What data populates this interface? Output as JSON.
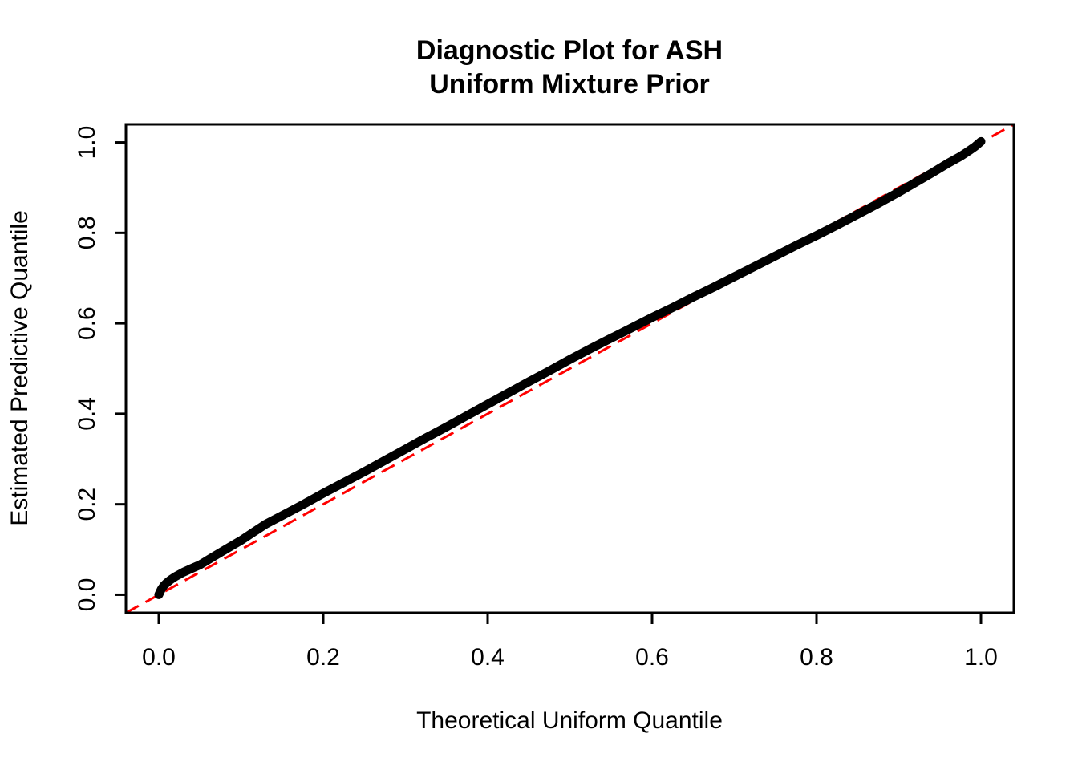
{
  "chart_data": {
    "type": "line",
    "title": "Diagnostic Plot for ASH\nUniform Mixture Prior",
    "title_lines": [
      "Diagnostic Plot for ASH",
      "Uniform Mixture Prior"
    ],
    "xlabel": "Theoretical Uniform Quantile",
    "ylabel": "Estimated Predictive Quantile",
    "xlim": [
      -0.04,
      1.04
    ],
    "ylim": [
      -0.04,
      1.04
    ],
    "grid": false,
    "legend_position": "none",
    "x_ticks": {
      "values": [
        0.0,
        0.2,
        0.4,
        0.6,
        0.8,
        1.0
      ],
      "labels": [
        "0.0",
        "0.2",
        "0.4",
        "0.6",
        "0.8",
        "1.0"
      ]
    },
    "y_ticks": {
      "values": [
        0.0,
        0.2,
        0.4,
        0.6,
        0.8,
        1.0
      ],
      "labels": [
        "0.0",
        "0.2",
        "0.4",
        "0.6",
        "0.8",
        "1.0"
      ]
    },
    "colors": {
      "curve": "#000000",
      "reference_line": "#FF0000",
      "axis": "#000000",
      "background": "#FFFFFF"
    },
    "series": [
      {
        "name": "estimated-predictive-quantile-curve",
        "style": "solid",
        "color": "#000000",
        "stroke_width": 11,
        "points": [
          [
            0.0,
            0.0
          ],
          [
            0.003,
            0.012
          ],
          [
            0.006,
            0.02
          ],
          [
            0.01,
            0.027
          ],
          [
            0.015,
            0.034
          ],
          [
            0.02,
            0.04
          ],
          [
            0.03,
            0.05
          ],
          [
            0.04,
            0.058
          ],
          [
            0.05,
            0.066
          ],
          [
            0.07,
            0.088
          ],
          [
            0.085,
            0.104
          ],
          [
            0.1,
            0.12
          ],
          [
            0.115,
            0.138
          ],
          [
            0.13,
            0.156
          ],
          [
            0.15,
            0.175
          ],
          [
            0.175,
            0.199
          ],
          [
            0.2,
            0.224
          ],
          [
            0.225,
            0.248
          ],
          [
            0.25,
            0.272
          ],
          [
            0.275,
            0.297
          ],
          [
            0.3,
            0.322
          ],
          [
            0.325,
            0.347
          ],
          [
            0.35,
            0.371
          ],
          [
            0.375,
            0.396
          ],
          [
            0.4,
            0.421
          ],
          [
            0.425,
            0.446
          ],
          [
            0.45,
            0.471
          ],
          [
            0.475,
            0.495
          ],
          [
            0.5,
            0.52
          ],
          [
            0.525,
            0.544
          ],
          [
            0.55,
            0.567
          ],
          [
            0.575,
            0.59
          ],
          [
            0.6,
            0.613
          ],
          [
            0.625,
            0.635
          ],
          [
            0.65,
            0.658
          ],
          [
            0.675,
            0.68
          ],
          [
            0.7,
            0.703
          ],
          [
            0.725,
            0.726
          ],
          [
            0.75,
            0.749
          ],
          [
            0.775,
            0.772
          ],
          [
            0.8,
            0.794
          ],
          [
            0.825,
            0.817
          ],
          [
            0.85,
            0.841
          ],
          [
            0.875,
            0.865
          ],
          [
            0.9,
            0.89
          ],
          [
            0.92,
            0.911
          ],
          [
            0.94,
            0.932
          ],
          [
            0.96,
            0.954
          ],
          [
            0.975,
            0.969
          ],
          [
            0.985,
            0.981
          ],
          [
            0.993,
            0.991
          ],
          [
            1.0,
            1.002
          ]
        ]
      },
      {
        "name": "identity-reference-line",
        "style": "dashed",
        "color": "#FF0000",
        "stroke_width": 3,
        "points": [
          [
            -0.04,
            -0.04
          ],
          [
            1.04,
            1.04
          ]
        ]
      }
    ]
  }
}
